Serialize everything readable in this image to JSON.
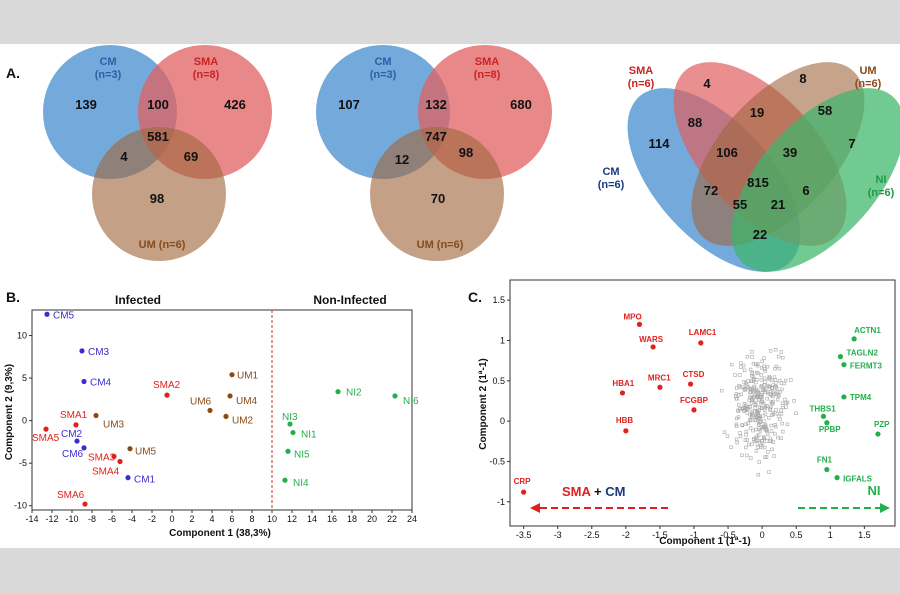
{
  "panels": {
    "a": "A.",
    "b": "B.",
    "c": "C."
  },
  "colors": {
    "cm": "#5b9bd5",
    "sma": "#e06060",
    "um": "#b07a55",
    "ni": "#3cb66a",
    "cm_text": "#2b5fa8",
    "sma_text": "#cc2222",
    "um_text": "#8a4a1a",
    "ni_text": "#1f9a4a",
    "cm_pt": "#3a2ed0",
    "sma_pt": "#e0221e",
    "um_pt": "#8b4a12",
    "ni_pt": "#22b04a"
  },
  "venn1": {
    "cm_label": "CM",
    "cm_n": "(n=3)",
    "sma_label": "SMA",
    "sma_n": "(n=8)",
    "um_label": "UM (n=6)",
    "cm_only": "139",
    "cm_sma": "100",
    "sma_only": "426",
    "center": "581",
    "cm_um": "4",
    "sma_um": "69",
    "um_only": "98"
  },
  "venn2": {
    "cm_label": "CM",
    "cm_n": "(n=3)",
    "sma_label": "SMA",
    "sma_n": "(n=8)",
    "um_label": "UM (n=6)",
    "cm_only": "107",
    "cm_sma": "132",
    "sma_only": "680",
    "center": "747",
    "cm_um": "12",
    "sma_um": "98",
    "um_only": "70"
  },
  "venn3": {
    "sma_label": "SMA",
    "sma_n": "(n=6)",
    "um_label": "UM",
    "um_n": "(n=6)",
    "cm_label": "CM",
    "cm_n": "(n=6)",
    "ni_label": "NI",
    "ni_n": "(n=6)",
    "v4": "4",
    "v8": "8",
    "v19": "19",
    "v88": "88",
    "v58": "58",
    "v114": "114",
    "v106": "106",
    "v39": "39",
    "v7": "7",
    "v815": "815",
    "v72": "72",
    "v55": "55",
    "v21": "21",
    "v6": "6",
    "v22": "22"
  },
  "chart_data": [
    {
      "type": "scatter",
      "panel": "B",
      "xlabel": "Component 1 (38,3%)",
      "ylabel": "Component 2 (9,3%)",
      "xlim": [
        -14,
        24
      ],
      "ylim": [
        -10.5,
        13
      ],
      "xticks": [
        -14,
        -12,
        -10,
        -8,
        -6,
        -4,
        -2,
        0,
        2,
        4,
        6,
        8,
        10,
        12,
        14,
        16,
        18,
        20,
        22,
        24
      ],
      "yticks": [
        10,
        5,
        0,
        -5,
        -10
      ],
      "region_infected": "Infected",
      "region_noninfected": "Non-Infected",
      "divider_x": 10,
      "series": [
        {
          "name": "CM",
          "points": [
            {
              "label": "CM5",
              "x": -12.5,
              "y": 12.5
            },
            {
              "label": "CM3",
              "x": -9,
              "y": 8.2
            },
            {
              "label": "CM4",
              "x": -8.8,
              "y": 4.6
            },
            {
              "label": "CM2",
              "x": -9.5,
              "y": -2.4
            },
            {
              "label": "CM6",
              "x": -8.8,
              "y": -3.2
            },
            {
              "label": "CM1",
              "x": -4.4,
              "y": -6.7
            }
          ]
        },
        {
          "name": "SMA",
          "points": [
            {
              "label": "SMA1",
              "x": -9.6,
              "y": -0.5
            },
            {
              "label": "SMA2",
              "x": -0.5,
              "y": 3.0
            },
            {
              "label": "SMA5",
              "x": -12.6,
              "y": -1.0
            },
            {
              "label": "SMA3",
              "x": -5.8,
              "y": -4.2
            },
            {
              "label": "SMA4",
              "x": -5.2,
              "y": -4.8
            },
            {
              "label": "SMA6",
              "x": -8.7,
              "y": -9.8
            }
          ]
        },
        {
          "name": "UM",
          "points": [
            {
              "label": "UM1",
              "x": 6.0,
              "y": 5.4
            },
            {
              "label": "UM4",
              "x": 5.8,
              "y": 2.9
            },
            {
              "label": "UM6",
              "x": 3.8,
              "y": 1.2
            },
            {
              "label": "UM2",
              "x": 5.4,
              "y": 0.5
            },
            {
              "label": "UM3",
              "x": -7.6,
              "y": 0.6
            },
            {
              "label": "UM5",
              "x": -4.2,
              "y": -3.3
            }
          ]
        },
        {
          "name": "NI",
          "points": [
            {
              "label": "NI2",
              "x": 16.6,
              "y": 3.4
            },
            {
              "label": "NI6",
              "x": 22.3,
              "y": 2.9
            },
            {
              "label": "NI3",
              "x": 11.8,
              "y": -0.4
            },
            {
              "label": "NI1",
              "x": 12.1,
              "y": -1.4
            },
            {
              "label": "NI5",
              "x": 11.6,
              "y": -3.6
            },
            {
              "label": "NI4",
              "x": 11.3,
              "y": -7.0
            }
          ]
        }
      ]
    },
    {
      "type": "scatter",
      "panel": "C",
      "xlabel": "Component 1 (1ª-1)",
      "ylabel": "Component 2 (1ª-1)",
      "xlim": [
        -3.7,
        1.95
      ],
      "ylim": [
        -1.3,
        1.75
      ],
      "xticks": [
        -3.5,
        -3,
        -2.5,
        -2,
        -1.5,
        -1,
        -0.5,
        0,
        0.5,
        1,
        1.5
      ],
      "yticks": [
        1.5,
        1,
        0.5,
        0,
        -0.5,
        -1
      ],
      "arrow_left_sma": "SMA",
      "arrow_left_plus": " + ",
      "arrow_left_cm": "CM",
      "arrow_right": "NI",
      "series": [
        {
          "name": "SMA + CM",
          "points": [
            {
              "label": "MPO",
              "x": -1.8,
              "y": 1.2
            },
            {
              "label": "WARS",
              "x": -1.6,
              "y": 0.92
            },
            {
              "label": "LAMC1",
              "x": -0.9,
              "y": 0.97
            },
            {
              "label": "HBA1",
              "x": -2.05,
              "y": 0.35
            },
            {
              "label": "MRC1",
              "x": -1.5,
              "y": 0.42
            },
            {
              "label": "CTSD",
              "x": -1.05,
              "y": 0.46
            },
            {
              "label": "FCGBP",
              "x": -1.0,
              "y": 0.14
            },
            {
              "label": "HBB",
              "x": -2.0,
              "y": -0.12
            },
            {
              "label": "CRP",
              "x": -3.5,
              "y": -0.88
            }
          ]
        },
        {
          "name": "NI",
          "points": [
            {
              "label": "ACTN1",
              "x": 1.35,
              "y": 1.02
            },
            {
              "label": "TAGLN2",
              "x": 1.15,
              "y": 0.8
            },
            {
              "label": "FERMT3",
              "x": 1.2,
              "y": 0.7
            },
            {
              "label": "TPM4",
              "x": 1.2,
              "y": 0.3
            },
            {
              "label": "THBS1",
              "x": 0.9,
              "y": 0.06
            },
            {
              "label": "PPBP",
              "x": 0.95,
              "y": -0.02
            },
            {
              "label": "PZP",
              "x": 1.7,
              "y": -0.16
            },
            {
              "label": "FN1",
              "x": 0.95,
              "y": -0.6
            },
            {
              "label": "IGFALS",
              "x": 1.1,
              "y": -0.7
            }
          ]
        }
      ]
    }
  ]
}
